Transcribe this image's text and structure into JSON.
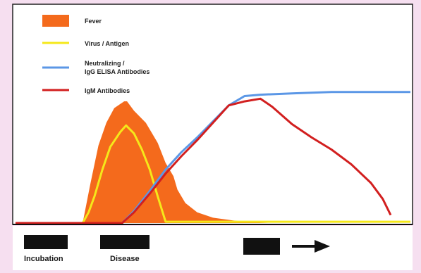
{
  "chart_data": {
    "type": "area",
    "title": "",
    "xlabel": "",
    "ylabel": "",
    "grid": false,
    "legend_position": "top-left",
    "x_range": [
      0,
      100
    ],
    "y_range": [
      0,
      100
    ],
    "series": [
      {
        "name": "Fever",
        "kind": "area",
        "color": "#f46a1c",
        "points": [
          [
            0,
            0
          ],
          [
            17,
            0
          ],
          [
            19,
            30
          ],
          [
            21,
            58
          ],
          [
            23,
            75
          ],
          [
            25,
            86
          ],
          [
            26.5,
            89
          ],
          [
            28,
            92
          ],
          [
            30,
            84
          ],
          [
            33,
            75
          ],
          [
            36,
            60
          ],
          [
            38,
            45
          ],
          [
            40,
            35
          ],
          [
            41,
            25
          ],
          [
            43,
            15
          ],
          [
            46,
            8
          ],
          [
            50,
            4
          ],
          [
            55,
            2
          ],
          [
            60,
            0.5
          ],
          [
            64,
            0
          ]
        ]
      },
      {
        "name": "Virus / Antigen",
        "kind": "line",
        "color": "#f5e81a",
        "points": [
          [
            0,
            0
          ],
          [
            17,
            0
          ],
          [
            18.5,
            8
          ],
          [
            20,
            20
          ],
          [
            22,
            40
          ],
          [
            24,
            57
          ],
          [
            26.5,
            68
          ],
          [
            28,
            73
          ],
          [
            30,
            67
          ],
          [
            32,
            55
          ],
          [
            34,
            40
          ],
          [
            36,
            20
          ],
          [
            38,
            1
          ],
          [
            40,
            1
          ],
          [
            60,
            1
          ],
          [
            80,
            1
          ],
          [
            100,
            1
          ]
        ]
      },
      {
        "name": "Neutralizing / IgG ELISA Antibodies",
        "kind": "line",
        "color": "#5b97e6",
        "points": [
          [
            0,
            0
          ],
          [
            27,
            0
          ],
          [
            30,
            9
          ],
          [
            34,
            24
          ],
          [
            38,
            40
          ],
          [
            42,
            53
          ],
          [
            46,
            64
          ],
          [
            50,
            76
          ],
          [
            54,
            88
          ],
          [
            58,
            95
          ],
          [
            62,
            96
          ],
          [
            70,
            97
          ],
          [
            80,
            98
          ],
          [
            90,
            98
          ],
          [
            100,
            98
          ]
        ]
      },
      {
        "name": "IgM Antibodies",
        "kind": "line",
        "color": "#d21f1f",
        "points": [
          [
            0,
            0
          ],
          [
            27,
            0
          ],
          [
            30,
            8
          ],
          [
            34,
            22
          ],
          [
            38,
            37
          ],
          [
            42,
            50
          ],
          [
            46,
            62
          ],
          [
            50,
            75
          ],
          [
            54,
            88
          ],
          [
            58,
            91
          ],
          [
            62,
            93
          ],
          [
            65,
            87
          ],
          [
            70,
            74
          ],
          [
            75,
            64
          ],
          [
            80,
            55
          ],
          [
            85,
            44
          ],
          [
            90,
            30
          ],
          [
            93,
            18
          ],
          [
            95,
            6
          ]
        ]
      }
    ]
  },
  "legend": {
    "fever": "Fever",
    "virus": "Virus / Antigen",
    "igg_line1": "Neutralizing /",
    "igg_line2": "IgG ELISA Antibodies",
    "igm": "IgM Antibodies"
  },
  "timeline": {
    "incubation": "Incubation",
    "disease": "Disease"
  }
}
